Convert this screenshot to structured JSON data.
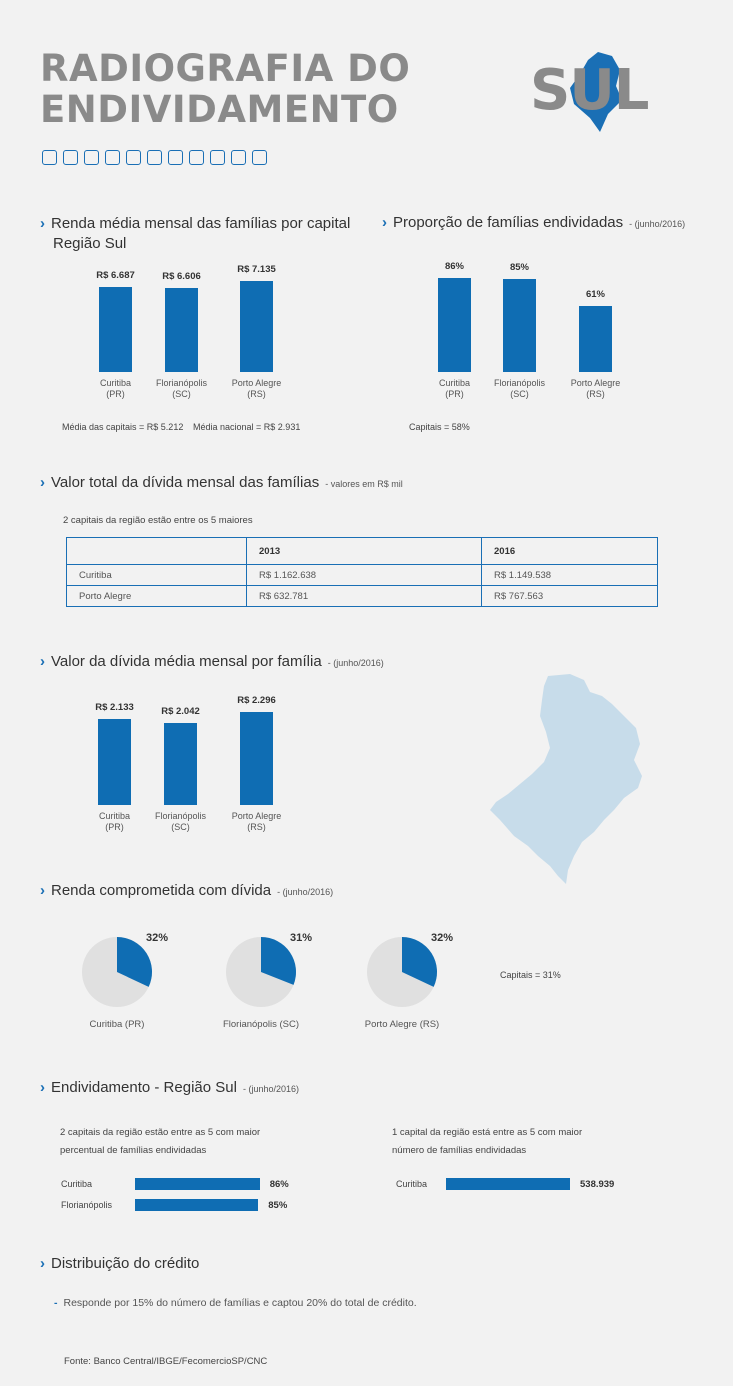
{
  "header": {
    "title_line1": "RADIOGRAFIA DO",
    "title_line2": "ENDIVIDAMENTO",
    "brand": "SUL"
  },
  "sections": {
    "renda_media": {
      "title_l1": "Renda média mensal das famílias por capital",
      "title_l2": "Região Sul",
      "note1": "Média das capitais = R$ 5.212",
      "note2": "Média nacional = R$ 2.931"
    },
    "proporcao": {
      "title": "Proporção de famílias endividadas",
      "sub": "- (junho/2016)",
      "note": "Capitais = 58%"
    },
    "valor_total": {
      "title": "Valor total da dívida mensal das famílias",
      "sub": "- valores em R$ mil",
      "note": "2 capitais da região estão entre os 5 maiores"
    },
    "divida_media": {
      "title": "Valor da dívida média mensal por família",
      "sub": "- (junho/2016)"
    },
    "renda_comprometida": {
      "title": "Renda comprometida com dívida",
      "sub": "- (junho/2016)",
      "note": "Capitais = 31%"
    },
    "endividamento": {
      "title": "Endividamento - Região Sul",
      "sub": "- (junho/2016)",
      "left_note_l1": "2 capitais da região estão entre as 5 com maior",
      "left_note_l2": "percentual de famílias endividadas",
      "right_note_l1": "1 capital da região está entre as 5 com maior",
      "right_note_l2": "número de famílias endividadas"
    },
    "distribuicao": {
      "title": "Distribuição do crédito",
      "bullet": "Responde por 15% do número de famílias e captou 20% do total de crédito."
    },
    "source": "Fonte: Banco Central/IBGE/FecomercioSP/CNC"
  },
  "colors": {
    "bar": "#0f6db3",
    "pie_bg": "#e0e0e0",
    "map": "#c7dcea"
  },
  "chart_data": [
    {
      "type": "bar",
      "categories": [
        "Curitiba (PR)",
        "Florianópolis (SC)",
        "Porto Alegre (RS)"
      ],
      "cat_l1": [
        "Curitiba",
        "Florianópolis",
        "Porto Alegre"
      ],
      "cat_l2": [
        "(PR)",
        "(SC)",
        "(RS)"
      ],
      "values": [
        6687,
        6606,
        7135
      ],
      "labels": [
        "R$ 6.687",
        "R$ 6.606",
        "R$ 7.135"
      ],
      "ylim": [
        0,
        8000
      ]
    },
    {
      "type": "bar",
      "categories": [
        "Curitiba (PR)",
        "Florianópolis (SC)",
        "Porto Alegre (RS)"
      ],
      "cat_l1": [
        "Curitiba",
        "Florianópolis",
        "Porto Alegre"
      ],
      "cat_l2": [
        "(PR)",
        "(SC)",
        "(RS)"
      ],
      "values": [
        86,
        85,
        61
      ],
      "labels": [
        "86%",
        "85%",
        "61%"
      ],
      "ylim": [
        0,
        100
      ]
    },
    {
      "type": "table",
      "columns": [
        "",
        "2013",
        "2016"
      ],
      "rows": [
        [
          "Curitiba",
          "R$ 1.162.638",
          "R$ 1.149.538"
        ],
        [
          "Porto Alegre",
          "R$ 632.781",
          "R$ 767.563"
        ]
      ]
    },
    {
      "type": "bar",
      "categories": [
        "Curitiba (PR)",
        "Florianópolis (SC)",
        "Porto Alegre (RS)"
      ],
      "cat_l1": [
        "Curitiba",
        "Florianópolis",
        "Porto Alegre"
      ],
      "cat_l2": [
        "(PR)",
        "(SC)",
        "(RS)"
      ],
      "values": [
        2133,
        2042,
        2296
      ],
      "labels": [
        "R$ 2.133",
        "R$ 2.042",
        "R$ 2.296"
      ],
      "ylim": [
        0,
        2600
      ]
    },
    {
      "type": "pie",
      "items": [
        {
          "name": "Curitiba (PR)",
          "value": 32,
          "label": "32%"
        },
        {
          "name": "Florianópolis (SC)",
          "value": 31,
          "label": "31%"
        },
        {
          "name": "Porto Alegre (RS)",
          "value": 32,
          "label": "32%"
        }
      ]
    },
    {
      "type": "bar",
      "orientation": "horizontal",
      "categories": [
        "Curitiba",
        "Florianópolis"
      ],
      "values": [
        86,
        85
      ],
      "labels": [
        "86%",
        "85%"
      ],
      "xlim": [
        0,
        100
      ]
    },
    {
      "type": "bar",
      "orientation": "horizontal",
      "categories": [
        "Curitiba"
      ],
      "values": [
        538939
      ],
      "labels": [
        "538.939"
      ],
      "xlim": [
        0,
        538939
      ]
    }
  ]
}
